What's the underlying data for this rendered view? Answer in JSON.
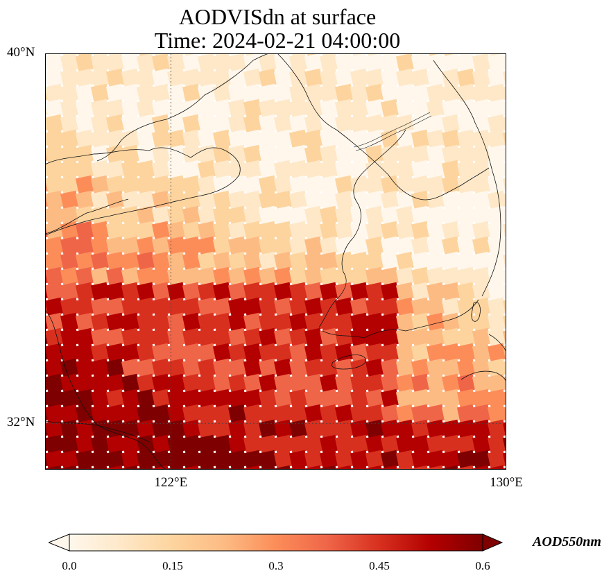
{
  "title": {
    "line1": "AODVISdn at surface",
    "line2": "Time: 2024-02-21 04:00:00"
  },
  "map": {
    "lon_range": [
      119,
      130
    ],
    "lat_range": [
      31,
      40
    ],
    "lat_labels": [
      {
        "value": 40,
        "text": "40°N"
      },
      {
        "value": 32,
        "text": "32°N"
      }
    ],
    "lon_labels": [
      {
        "value": 122,
        "text": "122°E"
      },
      {
        "value": 130,
        "text": "130°E"
      }
    ],
    "gridlines": {
      "lons": [
        122
      ],
      "lats": [
        32
      ]
    },
    "colormap": "OrRd",
    "field_description_bands": [
      {
        "region": "north (Bohai, Shandong, Korea)",
        "aod_approx": 0.1
      },
      {
        "region": "central Yellow Sea",
        "aod_approx": 0.3
      },
      {
        "region": "south-west (East China Sea)",
        "aod_approx": 0.6
      }
    ]
  },
  "colorbar": {
    "min": 0.0,
    "max": 0.6,
    "ticks": [
      "0.0",
      "0.15",
      "0.3",
      "0.45",
      "0.6"
    ],
    "units": "AOD550nm",
    "extend": "both"
  },
  "colors": {
    "c0": "#fff7ec",
    "c1": "#fee8c8",
    "c2": "#fdd49e",
    "c3": "#fdbb84",
    "c4": "#fc8d59",
    "c5": "#ef6548",
    "c6": "#d7301f",
    "c7": "#b30000",
    "c8": "#7f0000"
  }
}
